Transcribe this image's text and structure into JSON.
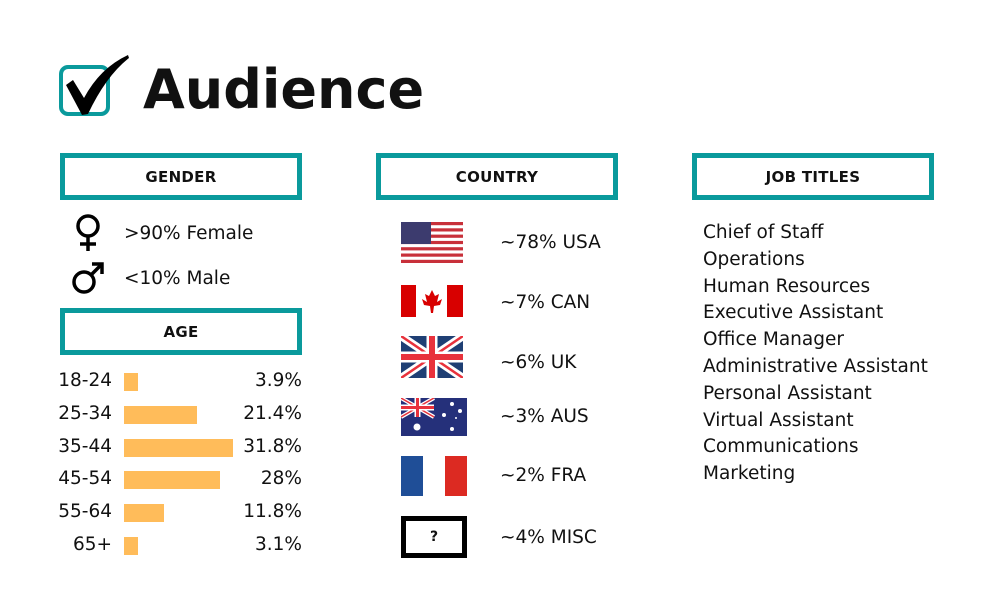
{
  "title": "Audience",
  "accent_color": "#0a9a9c",
  "bar_color": "#ffbc5a",
  "gender": {
    "header": "GENDER",
    "items": [
      {
        "icon": "female-sign-icon",
        "label": ">90% Female"
      },
      {
        "icon": "male-sign-icon",
        "label": "<10% Male"
      }
    ]
  },
  "age": {
    "header": "AGE",
    "chart_data": {
      "type": "bar",
      "orientation": "horizontal",
      "categories": [
        "18-24",
        "25-34",
        "35-44",
        "45-54",
        "55-64",
        "65+"
      ],
      "values": [
        3.9,
        21.4,
        31.8,
        28,
        11.8,
        3.1
      ],
      "value_labels": [
        "3.9%",
        "21.4%",
        "31.8%",
        "28%",
        "11.8%",
        "3.1%"
      ]
    }
  },
  "country": {
    "header": "COUNTRY",
    "items": [
      {
        "icon": "usa-flag-icon",
        "label": "~78% USA"
      },
      {
        "icon": "canada-flag-icon",
        "label": "~7% CAN"
      },
      {
        "icon": "uk-flag-icon",
        "label": "~6% UK"
      },
      {
        "icon": "australia-flag-icon",
        "label": "~3% AUS"
      },
      {
        "icon": "france-flag-icon",
        "label": "~2% FRA"
      },
      {
        "icon": "question-box-icon",
        "label": "~4% MISC",
        "icon_text": "?"
      }
    ]
  },
  "job_titles": {
    "header": "JOB TITLES",
    "items": [
      "Chief of Staff",
      "Operations",
      "Human Resources",
      "Executive Assistant",
      "Office Manager",
      "Administrative Assistant",
      "Personal Assistant",
      "Virtual Assistant",
      "Communications",
      "Marketing"
    ]
  }
}
